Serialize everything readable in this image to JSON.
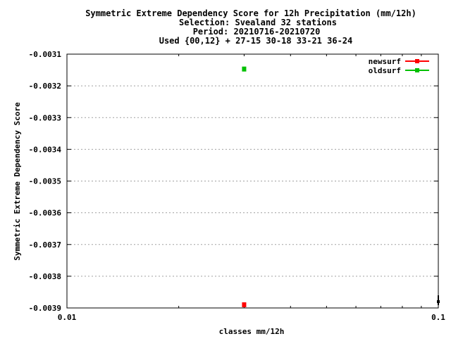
{
  "title": {
    "line1": "Symmetric Extreme Dependency Score  for 12h Precipitation (mm/12h)",
    "line2": "Selection: Svealand     32 stations",
    "line3": "Period: 20210716-20210720",
    "line4": "Used {00,12} + 27-15 30-18 33-21 36-24"
  },
  "chart_data": {
    "type": "scatter",
    "xlabel": "classes mm/12h",
    "ylabel": "Symmetric Extreme Dependency Score",
    "x_scale": "log",
    "xlim": [
      0.01,
      0.1
    ],
    "ylim": [
      -0.0039,
      -0.0031
    ],
    "grid": true,
    "legend_position": "top-right",
    "x_ticks": [
      {
        "value": 0.01,
        "label": "0.01"
      },
      {
        "value": 0.1,
        "label": "0.1"
      }
    ],
    "y_ticks": [
      {
        "value": -0.0031,
        "label": "-0.0031"
      },
      {
        "value": -0.0032,
        "label": "-0.0032"
      },
      {
        "value": -0.0033,
        "label": "-0.0033"
      },
      {
        "value": -0.0034,
        "label": "-0.0034"
      },
      {
        "value": -0.0035,
        "label": "-0.0035"
      },
      {
        "value": -0.0036,
        "label": "-0.0036"
      },
      {
        "value": -0.0037,
        "label": "-0.0037"
      },
      {
        "value": -0.0038,
        "label": "-0.0038"
      },
      {
        "value": -0.0039,
        "label": "-0.0039"
      }
    ],
    "series": [
      {
        "name": "newsurf",
        "color": "#ff0000",
        "x": [
          0.03
        ],
        "y": [
          -0.00389
        ]
      },
      {
        "name": "oldsurf",
        "color": "#00c000",
        "x": [
          0.03
        ],
        "y": [
          -0.003147
        ]
      }
    ]
  }
}
